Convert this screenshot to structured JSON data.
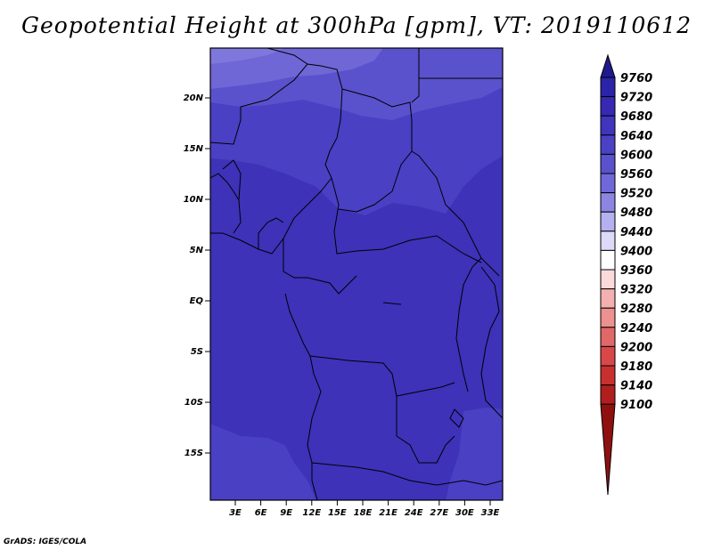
{
  "title": "Geopotential Height at 300hPa [gpm], VT: 2019110612",
  "footer": "GrADS: IGES/COLA",
  "map": {
    "lat_labels": [
      "20N",
      "15N",
      "10N",
      "5N",
      "EQ",
      "5S",
      "10S",
      "15S"
    ],
    "lon_labels": [
      "3E",
      "6E",
      "9E",
      "12E",
      "15E",
      "18E",
      "21E",
      "24E",
      "27E",
      "30E",
      "33E"
    ]
  },
  "colorbar": {
    "levels": [
      "9760",
      "9720",
      "9680",
      "9640",
      "9600",
      "9560",
      "9520",
      "9480",
      "9440",
      "9400",
      "9360",
      "9320",
      "9280",
      "9240",
      "9200",
      "9180",
      "9140",
      "9100"
    ],
    "colors": [
      "#1f1a8c",
      "#2b24a8",
      "#3729b4",
      "#4035bc",
      "#4a42c4",
      "#5a52cc",
      "#7068d8",
      "#8c86e2",
      "#b5b0ef",
      "#dcdaf8",
      "#ffffff",
      "#fadada",
      "#f4b0b0",
      "#ec9090",
      "#e06868",
      "#d84848",
      "#c83030",
      "#b01e1e",
      "#901010"
    ]
  },
  "chart_data": {
    "type": "heatmap",
    "title": "Geopotential Height at 300hPa [gpm], VT: 2019110612",
    "units": "gpm",
    "x_ticks": [
      "3E",
      "6E",
      "9E",
      "12E",
      "15E",
      "18E",
      "21E",
      "24E",
      "27E",
      "30E",
      "33E"
    ],
    "y_ticks": [
      "20N",
      "15N",
      "10N",
      "5N",
      "EQ",
      "5S",
      "10S",
      "15S"
    ],
    "levels": [
      9100,
      9140,
      9180,
      9200,
      9240,
      9280,
      9320,
      9360,
      9400,
      9440,
      9480,
      9520,
      9560,
      9600,
      9640,
      9680,
      9720,
      9760
    ],
    "region_values": [
      {
        "region": "far north-west corner",
        "range": [
          9560,
          9600
        ]
      },
      {
        "region": "northern Sahara band",
        "range": [
          9600,
          9640
        ]
      },
      {
        "region": "Sahel",
        "range": [
          9640,
          9680
        ]
      },
      {
        "region": "equatorial and central Africa",
        "range": [
          9680,
          9720
        ]
      },
      {
        "region": "south-west Atlantic corner",
        "range": [
          9640,
          9680
        ]
      }
    ]
  }
}
